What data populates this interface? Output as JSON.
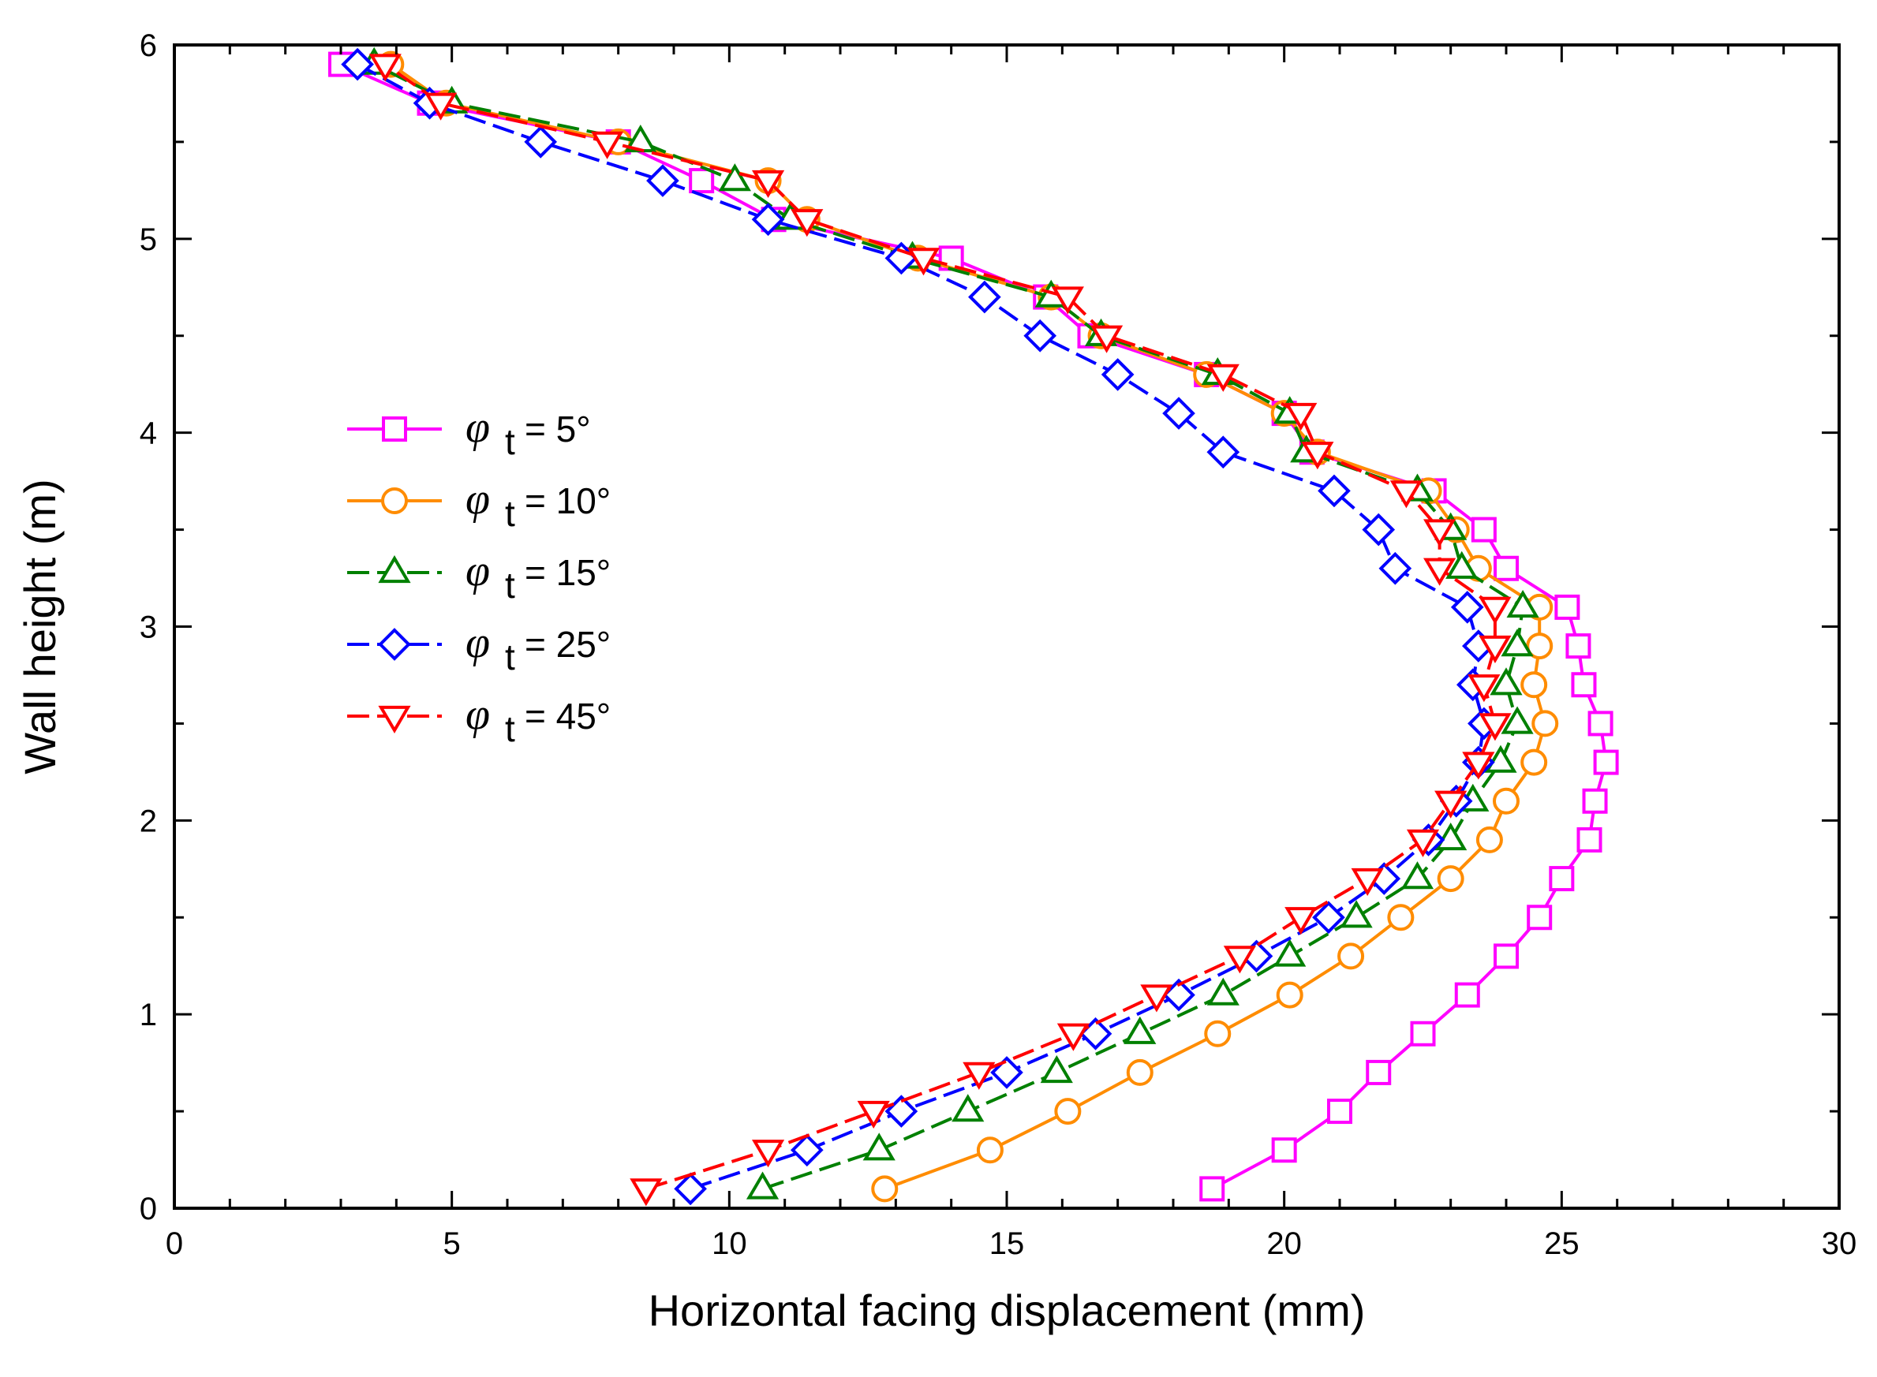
{
  "chart_data": {
    "type": "line",
    "title": "",
    "xlabel": "Horizontal facing displacement (mm)",
    "ylabel": "Wall height (m)",
    "xlim": [
      0,
      30
    ],
    "ylim": [
      0,
      6
    ],
    "xticks": [
      0,
      5,
      10,
      15,
      20,
      25,
      30
    ],
    "yticks": [
      0,
      1,
      2,
      3,
      4,
      5,
      6
    ],
    "x_tick_labels": [
      "0",
      "5",
      "10",
      "15",
      "20",
      "25",
      "30"
    ],
    "y_tick_labels": [
      "0",
      "1",
      "2",
      "3",
      "4",
      "5",
      "6"
    ],
    "grid": false,
    "legend_position": "left",
    "series": [
      {
        "name": "φ t = 5°",
        "label_symbol": "φ",
        "label_sub": "t",
        "label_value": " = 5°",
        "color": "#ff00ff",
        "marker": "square",
        "dash": "solid",
        "y": [
          0.1,
          0.3,
          0.5,
          0.7,
          0.9,
          1.1,
          1.3,
          1.5,
          1.7,
          1.9,
          2.1,
          2.3,
          2.5,
          2.7,
          2.9,
          3.1,
          3.3,
          3.5,
          3.7,
          3.9,
          4.1,
          4.3,
          4.5,
          4.7,
          4.9,
          5.1,
          5.3,
          5.5,
          5.7,
          5.9
        ],
        "x": [
          18.7,
          20.0,
          21.0,
          21.7,
          22.5,
          23.3,
          24.0,
          24.6,
          25.0,
          25.5,
          25.6,
          25.8,
          25.7,
          25.4,
          25.3,
          25.1,
          24.0,
          23.6,
          22.7,
          20.5,
          20.0,
          18.6,
          16.5,
          15.7,
          14.0,
          10.8,
          9.5,
          8.0,
          4.6,
          3.0
        ]
      },
      {
        "name": "φ t = 10°",
        "label_symbol": "φ",
        "label_sub": "t",
        "label_value": " = 10°",
        "color": "#ff8c00",
        "marker": "circle",
        "dash": "solid",
        "y": [
          0.1,
          0.3,
          0.5,
          0.7,
          0.9,
          1.1,
          1.3,
          1.5,
          1.7,
          1.9,
          2.1,
          2.3,
          2.5,
          2.7,
          2.9,
          3.1,
          3.3,
          3.5,
          3.7,
          3.9,
          4.1,
          4.3,
          4.5,
          4.7,
          4.9,
          5.1,
          5.3,
          5.5,
          5.7,
          5.9
        ],
        "x": [
          12.8,
          14.7,
          16.1,
          17.4,
          18.8,
          20.1,
          21.2,
          22.1,
          23.0,
          23.7,
          24.0,
          24.5,
          24.7,
          24.5,
          24.6,
          24.6,
          23.5,
          23.1,
          22.6,
          20.6,
          20.0,
          18.6,
          16.7,
          15.8,
          13.4,
          11.4,
          10.7,
          8.0,
          4.9,
          3.9
        ]
      },
      {
        "name": "φ t = 15°",
        "label_symbol": "φ",
        "label_sub": "t",
        "label_value": " = 15°",
        "color": "#008000",
        "marker": "triangle-up",
        "dash": "dashed",
        "y": [
          0.1,
          0.3,
          0.5,
          0.7,
          0.9,
          1.1,
          1.3,
          1.5,
          1.7,
          1.9,
          2.1,
          2.3,
          2.5,
          2.7,
          2.9,
          3.1,
          3.3,
          3.5,
          3.7,
          3.9,
          4.1,
          4.3,
          4.5,
          4.7,
          4.9,
          5.1,
          5.3,
          5.5,
          5.7,
          5.9
        ],
        "x": [
          10.6,
          12.7,
          14.3,
          15.9,
          17.4,
          18.9,
          20.1,
          21.3,
          22.4,
          23.0,
          23.4,
          23.9,
          24.2,
          24.0,
          24.2,
          24.3,
          23.2,
          23.0,
          22.4,
          20.4,
          20.1,
          18.8,
          16.7,
          15.8,
          13.3,
          11.1,
          10.1,
          8.4,
          5.0,
          3.6
        ]
      },
      {
        "name": "φ t = 25°",
        "label_symbol": "φ",
        "label_sub": "t",
        "label_value": " = 25°",
        "color": "#0000ff",
        "marker": "diamond",
        "dash": "dashed",
        "y": [
          0.1,
          0.3,
          0.5,
          0.7,
          0.9,
          1.1,
          1.3,
          1.5,
          1.7,
          1.9,
          2.1,
          2.3,
          2.5,
          2.7,
          2.9,
          3.1,
          3.3,
          3.5,
          3.7,
          3.9,
          4.1,
          4.3,
          4.5,
          4.7,
          4.9,
          5.1,
          5.3,
          5.5,
          5.7,
          5.9
        ],
        "x": [
          9.3,
          11.4,
          13.1,
          15.0,
          16.6,
          18.1,
          19.5,
          20.8,
          21.8,
          22.6,
          23.1,
          23.5,
          23.6,
          23.4,
          23.5,
          23.3,
          22.0,
          21.7,
          20.9,
          18.9,
          18.1,
          17.0,
          15.6,
          14.6,
          13.1,
          10.7,
          8.8,
          6.6,
          4.6,
          3.3
        ]
      },
      {
        "name": "φ t = 45°",
        "label_symbol": "φ",
        "label_sub": "t",
        "label_value": " = 45°",
        "color": "#ff0000",
        "marker": "triangle-down",
        "dash": "dashed",
        "y": [
          0.1,
          0.3,
          0.5,
          0.7,
          0.9,
          1.1,
          1.3,
          1.5,
          1.7,
          1.9,
          2.1,
          2.3,
          2.5,
          2.7,
          2.9,
          3.1,
          3.3,
          3.5,
          3.7,
          3.9,
          4.1,
          4.3,
          4.5,
          4.7,
          4.9,
          5.1,
          5.3,
          5.5,
          5.7,
          5.9
        ],
        "x": [
          8.5,
          10.7,
          12.6,
          14.5,
          16.2,
          17.7,
          19.2,
          20.3,
          21.5,
          22.5,
          23.0,
          23.5,
          23.8,
          23.6,
          23.8,
          23.8,
          22.8,
          22.8,
          22.2,
          20.6,
          20.3,
          18.9,
          16.8,
          16.1,
          13.5,
          11.4,
          10.7,
          7.8,
          4.8,
          3.8
        ]
      }
    ]
  }
}
